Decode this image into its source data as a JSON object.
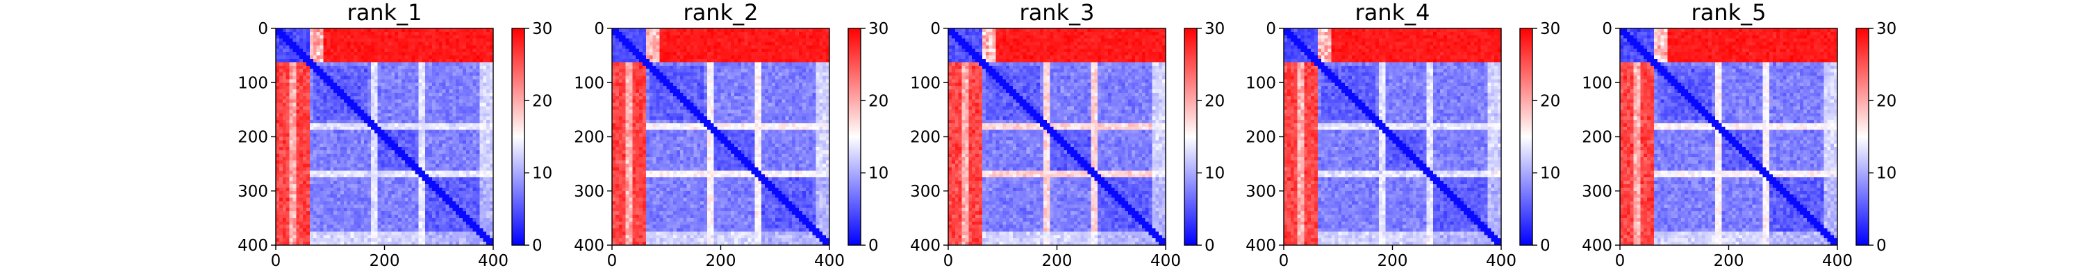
{
  "chart_data": {
    "type": "heatmap",
    "colormap": "bwr",
    "colormap_colors": [
      "#0000ff",
      "#ffffff",
      "#ff0000"
    ],
    "color_range": [
      0,
      30
    ],
    "colorbar_ticks": [
      0,
      10,
      20,
      30
    ],
    "colorbar_tick_labels": [
      "0",
      "10",
      "20",
      "30"
    ],
    "x_ticks": [
      0,
      200,
      400
    ],
    "x_tick_labels": [
      "0",
      "200",
      "400"
    ],
    "y_ticks": [
      0,
      100,
      200,
      300,
      400
    ],
    "y_tick_labels": [
      "0",
      "100",
      "200",
      "300",
      "400"
    ],
    "xlim": [
      0,
      400
    ],
    "ylim": [
      400,
      0
    ],
    "matrix_size": 400,
    "grid": false,
    "panels": [
      {
        "title": "rank_1"
      },
      {
        "title": "rank_2"
      },
      {
        "title": "rank_3"
      },
      {
        "title": "rank_4"
      },
      {
        "title": "rank_5"
      }
    ]
  }
}
